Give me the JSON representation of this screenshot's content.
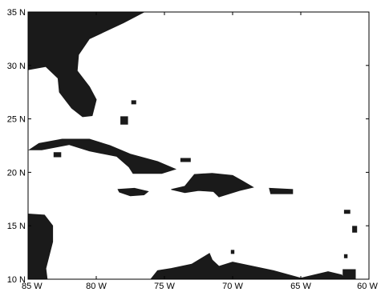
{
  "map": {
    "x_ticks": [
      {
        "lon": -85,
        "label": "85 W"
      },
      {
        "lon": -80,
        "label": "80 W"
      },
      {
        "lon": -75,
        "label": "75 W"
      },
      {
        "lon": -70,
        "label": "70 W"
      },
      {
        "lon": -65,
        "label": "65 W"
      },
      {
        "lon": -60,
        "label": "60 W"
      }
    ],
    "y_ticks": [
      {
        "lat": 10,
        "label": "10 N"
      },
      {
        "lat": 15,
        "label": "15 N"
      },
      {
        "lat": 20,
        "label": "20 N"
      },
      {
        "lat": 25,
        "label": "25 N"
      },
      {
        "lat": 30,
        "label": "30 N"
      },
      {
        "lat": 35,
        "label": "35 N"
      }
    ],
    "lon_range": [
      -85,
      -60
    ],
    "lat_range": [
      10,
      35
    ],
    "land_color": "#1a1a1a",
    "land_features": [
      {
        "name": "north-america-florida",
        "coords": [
          [
            -85,
            35
          ],
          [
            -76.5,
            35
          ],
          [
            -78,
            34
          ],
          [
            -80.5,
            32.5
          ],
          [
            -81.3,
            31
          ],
          [
            -81.4,
            29.5
          ],
          [
            -80.5,
            28
          ],
          [
            -80,
            26.8
          ],
          [
            -80.3,
            25.3
          ],
          [
            -81,
            25.2
          ],
          [
            -81.8,
            26
          ],
          [
            -82.7,
            27.5
          ],
          [
            -82.8,
            28.8
          ],
          [
            -83.7,
            29.9
          ],
          [
            -85,
            29.6
          ]
        ]
      },
      {
        "name": "cuba",
        "coords": [
          [
            -84.9,
            22.1
          ],
          [
            -84.2,
            22.7
          ],
          [
            -82.5,
            23.1
          ],
          [
            -80.5,
            23.1
          ],
          [
            -79,
            22.5
          ],
          [
            -77.5,
            21.7
          ],
          [
            -75.5,
            21
          ],
          [
            -74.2,
            20.3
          ],
          [
            -75.2,
            19.9
          ],
          [
            -77.3,
            19.9
          ],
          [
            -77.6,
            20.5
          ],
          [
            -78.5,
            21.5
          ],
          [
            -80.5,
            22
          ],
          [
            -82,
            22.6
          ],
          [
            -84,
            22.1
          ]
        ]
      },
      {
        "name": "isla-de-la-juventud",
        "coords": [
          [
            -83.1,
            21.85
          ],
          [
            -82.6,
            21.85
          ],
          [
            -82.6,
            21.45
          ],
          [
            -83.1,
            21.45
          ]
        ]
      },
      {
        "name": "hispaniola",
        "coords": [
          [
            -74.5,
            18.4
          ],
          [
            -73.5,
            18.7
          ],
          [
            -72.8,
            19.8
          ],
          [
            -71.5,
            19.9
          ],
          [
            -70,
            19.7
          ],
          [
            -69.3,
            19.2
          ],
          [
            -68.5,
            18.6
          ],
          [
            -69.5,
            18.3
          ],
          [
            -71,
            17.7
          ],
          [
            -71.4,
            18.2
          ],
          [
            -72.5,
            18.3
          ],
          [
            -73.5,
            18.1
          ]
        ]
      },
      {
        "name": "jamaica",
        "coords": [
          [
            -78.4,
            18.4
          ],
          [
            -77.2,
            18.5
          ],
          [
            -76.2,
            18.2
          ],
          [
            -76.5,
            17.9
          ],
          [
            -77.5,
            17.8
          ],
          [
            -78.3,
            18.15
          ]
        ]
      },
      {
        "name": "puerto-rico",
        "coords": [
          [
            -67.3,
            18.5
          ],
          [
            -65.6,
            18.4
          ],
          [
            -65.6,
            18
          ],
          [
            -67.2,
            18
          ]
        ]
      },
      {
        "name": "bahamas-andros",
        "coords": [
          [
            -78.2,
            25.2
          ],
          [
            -77.7,
            25.2
          ],
          [
            -77.7,
            24.5
          ],
          [
            -78.2,
            24.5
          ]
        ]
      },
      {
        "name": "bahamas-abaco",
        "coords": [
          [
            -77.4,
            26.7
          ],
          [
            -77.1,
            26.7
          ],
          [
            -77.1,
            26.4
          ],
          [
            -77.4,
            26.4
          ]
        ]
      },
      {
        "name": "bahamas-inagua",
        "coords": [
          [
            -73.8,
            21.3
          ],
          [
            -73.1,
            21.3
          ],
          [
            -73.1,
            21
          ],
          [
            -73.8,
            21
          ]
        ]
      },
      {
        "name": "central-america",
        "coords": [
          [
            -85,
            16.1
          ],
          [
            -83.8,
            16
          ],
          [
            -83.2,
            15
          ],
          [
            -83.2,
            13.5
          ],
          [
            -83.5,
            12
          ],
          [
            -83.7,
            11
          ],
          [
            -83.6,
            10
          ],
          [
            -85,
            10
          ]
        ]
      },
      {
        "name": "south-america",
        "coords": [
          [
            -76,
            10
          ],
          [
            -75.5,
            10.8
          ],
          [
            -74.5,
            11
          ],
          [
            -73,
            11.4
          ],
          [
            -71.7,
            12.4
          ],
          [
            -71.5,
            11.8
          ],
          [
            -71,
            11.2
          ],
          [
            -70,
            11.6
          ],
          [
            -68.5,
            11.2
          ],
          [
            -67,
            10.8
          ],
          [
            -65,
            10.1
          ],
          [
            -63,
            10.7
          ],
          [
            -62,
            10.4
          ],
          [
            -61.8,
            10
          ],
          [
            -60,
            10
          ]
        ]
      },
      {
        "name": "curacao-aruba",
        "coords": [
          [
            -70.1,
            12.7
          ],
          [
            -69.9,
            12.7
          ],
          [
            -69.9,
            12.4
          ],
          [
            -70.1,
            12.4
          ]
        ]
      },
      {
        "name": "trinidad",
        "coords": [
          [
            -61.9,
            10.9
          ],
          [
            -61,
            10.9
          ],
          [
            -61,
            10.05
          ],
          [
            -61.9,
            10.05
          ]
        ]
      },
      {
        "name": "guadeloupe",
        "coords": [
          [
            -61.8,
            16.45
          ],
          [
            -61.4,
            16.45
          ],
          [
            -61.4,
            16.15
          ],
          [
            -61.8,
            16.15
          ]
        ]
      },
      {
        "name": "martinique",
        "coords": [
          [
            -61.2,
            14.95
          ],
          [
            -60.9,
            14.95
          ],
          [
            -60.9,
            14.4
          ],
          [
            -61.2,
            14.4
          ]
        ]
      },
      {
        "name": "grenada",
        "coords": [
          [
            -61.8,
            12.3
          ],
          [
            -61.6,
            12.3
          ],
          [
            -61.6,
            12
          ],
          [
            -61.8,
            12
          ]
        ]
      }
    ]
  }
}
